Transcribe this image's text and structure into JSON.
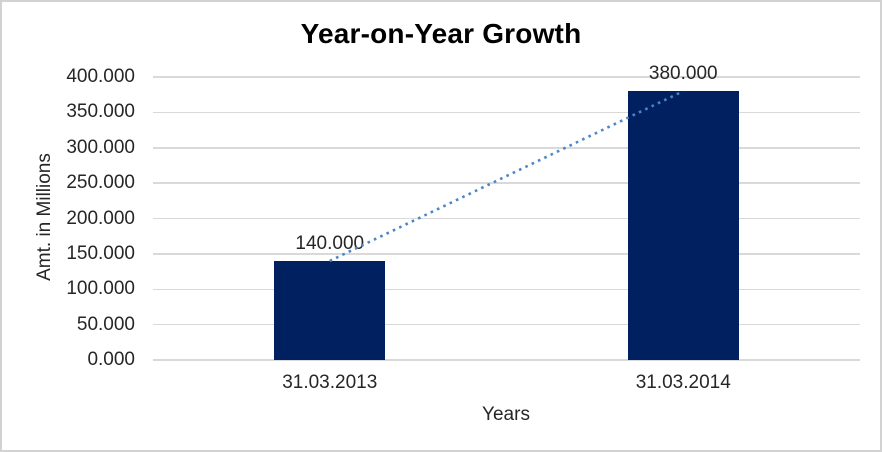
{
  "chart_data": {
    "type": "bar",
    "title": "Year-on-Year Growth",
    "xlabel": "Years",
    "ylabel": "Amt. in Millions",
    "categories": [
      "31.03.2013",
      "31.03.2014"
    ],
    "values": [
      140,
      380
    ],
    "value_labels": [
      "140.000",
      "380.000"
    ],
    "ylim": [
      0,
      400
    ],
    "ytick_step": 50,
    "ytick_labels": [
      "0.000",
      "50.000",
      "100.000",
      "150.000",
      "200.000",
      "250.000",
      "300.000",
      "350.000",
      "400.000"
    ],
    "grid": "horizontal",
    "legend": "none",
    "bar_color": "#002060",
    "gridline_color": "#d9d9d9",
    "label_color": "#262626",
    "title_color": "#000000",
    "trendline": {
      "style": "dotted",
      "color": "#4a86c8",
      "connects": "tops of bars from 31.03.2013 to 31.03.2014"
    }
  }
}
